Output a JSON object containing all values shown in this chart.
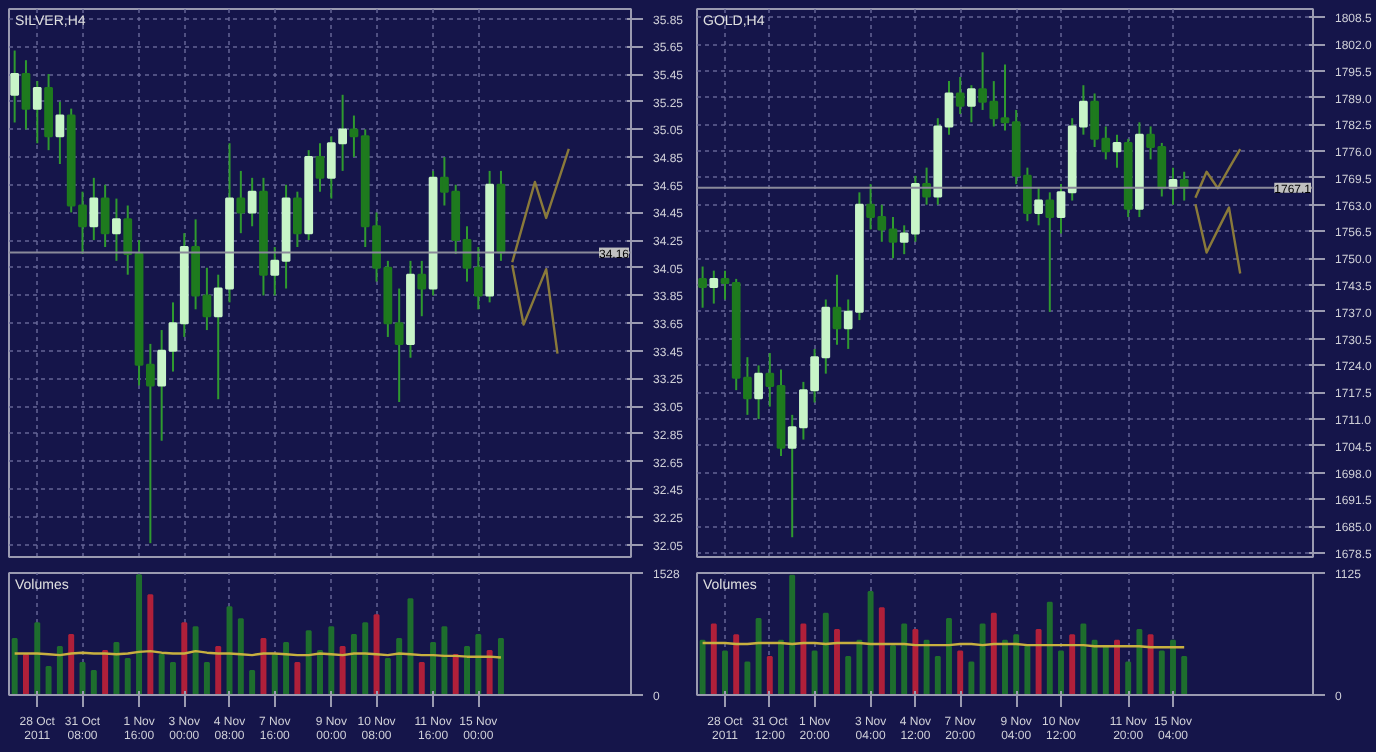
{
  "chart_data": [
    {
      "type": "candlestick",
      "title": "SILVER,H4",
      "tick_labels": "y",
      "grid": true,
      "categories": [
        null,
        null,
        null,
        null,
        null,
        null,
        null,
        null,
        null,
        null,
        null,
        null,
        null,
        null,
        null,
        null,
        null,
        null,
        null,
        null,
        null,
        null,
        null,
        null,
        null,
        null,
        null,
        null,
        null,
        null,
        null,
        null,
        null,
        null,
        null,
        null,
        null,
        null,
        null,
        null,
        null,
        null,
        null,
        null,
        null,
        null,
        null,
        null,
        null,
        null,
        null,
        null,
        null,
        null,
        null
      ],
      "ylim": [
        31.96,
        35.92
      ],
      "yticks": [
        32.05,
        32.25,
        32.45,
        32.65,
        32.85,
        33.05,
        33.25,
        33.45,
        33.65,
        33.85,
        34.05,
        34.25,
        34.45,
        34.65,
        34.85,
        35.05,
        35.25,
        35.45,
        35.65,
        35.85
      ],
      "ohlc": [
        [
          35.3,
          35.62,
          35.1,
          35.45
        ],
        [
          35.45,
          35.55,
          35.05,
          35.2
        ],
        [
          35.2,
          35.4,
          34.95,
          35.35
        ],
        [
          35.35,
          35.45,
          34.9,
          35.0
        ],
        [
          35.0,
          35.25,
          34.8,
          35.15
        ],
        [
          35.15,
          35.2,
          34.45,
          34.5
        ],
        [
          34.5,
          34.6,
          34.15,
          34.35
        ],
        [
          34.35,
          34.7,
          34.25,
          34.55
        ],
        [
          34.55,
          34.65,
          34.2,
          34.3
        ],
        [
          34.3,
          34.55,
          34.1,
          34.4
        ],
        [
          34.4,
          34.5,
          34.0,
          34.15
        ],
        [
          34.15,
          34.25,
          33.2,
          33.35
        ],
        [
          33.35,
          33.5,
          32.06,
          33.2
        ],
        [
          33.2,
          33.6,
          32.8,
          33.45
        ],
        [
          33.45,
          33.8,
          33.3,
          33.65
        ],
        [
          33.65,
          34.3,
          33.55,
          34.2
        ],
        [
          34.2,
          34.4,
          33.75,
          33.85
        ],
        [
          33.85,
          34.05,
          33.6,
          33.7
        ],
        [
          33.7,
          34.0,
          33.1,
          33.9
        ],
        [
          33.9,
          34.95,
          33.8,
          34.55
        ],
        [
          34.55,
          34.75,
          34.3,
          34.45
        ],
        [
          34.45,
          34.7,
          34.35,
          34.6
        ],
        [
          34.6,
          34.7,
          33.85,
          34.0
        ],
        [
          34.0,
          34.2,
          33.85,
          34.1
        ],
        [
          34.1,
          34.65,
          33.9,
          34.55
        ],
        [
          34.55,
          34.6,
          34.2,
          34.3
        ],
        [
          34.3,
          34.9,
          34.25,
          34.85
        ],
        [
          34.85,
          34.95,
          34.6,
          34.7
        ],
        [
          34.7,
          35.0,
          34.55,
          34.95
        ],
        [
          34.95,
          35.3,
          34.75,
          35.05
        ],
        [
          35.05,
          35.15,
          34.85,
          35.0
        ],
        [
          35.0,
          35.05,
          34.2,
          34.35
        ],
        [
          34.35,
          34.45,
          33.95,
          34.05
        ],
        [
          34.05,
          34.1,
          33.55,
          33.65
        ],
        [
          33.65,
          33.9,
          33.08,
          33.5
        ],
        [
          33.5,
          34.1,
          33.4,
          34.0
        ],
        [
          34.0,
          34.1,
          33.7,
          33.9
        ],
        [
          33.9,
          34.75,
          33.85,
          34.7
        ],
        [
          34.7,
          34.85,
          34.5,
          34.6
        ],
        [
          34.6,
          34.65,
          34.15,
          34.25
        ],
        [
          34.25,
          34.35,
          33.95,
          34.05
        ],
        [
          34.05,
          34.2,
          33.75,
          33.85
        ],
        [
          33.85,
          34.75,
          33.8,
          34.65
        ],
        [
          34.65,
          34.75,
          34.1,
          34.16
        ],
        null,
        null,
        null,
        null,
        null,
        null,
        null,
        null,
        null,
        null,
        null
      ],
      "colors": [
        "#c8f5c8",
        "#1e7a1e",
        "#c8f5c8",
        "#1e7a1e",
        "#c8f5c8",
        "#1e7a1e",
        "#1e7a1e",
        "#c8f5c8",
        "#1e7a1e",
        "#c8f5c8",
        "#1e7a1e",
        "#1e7a1e",
        "#1e7a1e",
        "#c8f5c8",
        "#c8f5c8",
        "#c8f5c8",
        "#1e7a1e",
        "#1e7a1e",
        "#c8f5c8",
        "#c8f5c8",
        "#1e7a1e",
        "#c8f5c8",
        "#1e7a1e",
        "#c8f5c8",
        "#c8f5c8",
        "#1e7a1e",
        "#c8f5c8",
        "#1e7a1e",
        "#c8f5c8",
        "#c8f5c8",
        "#1e7a1e",
        "#1e7a1e",
        "#1e7a1e",
        "#1e7a1e",
        "#1e7a1e",
        "#c8f5c8",
        "#1e7a1e",
        "#c8f5c8",
        "#1e7a1e",
        "#1e7a1e",
        "#1e7a1e",
        "#1e7a1e",
        "#c8f5c8",
        "#1e7a1e",
        null,
        null,
        null,
        null,
        null,
        null,
        null,
        null,
        null,
        null,
        null
      ],
      "series": [
        {
          "type": "line",
          "color": "#8a7a3a",
          "values": [
            null,
            null,
            null,
            null,
            null,
            null,
            null,
            null,
            null,
            null,
            null,
            null,
            null,
            null,
            null,
            null,
            null,
            null,
            null,
            null,
            null,
            null,
            null,
            null,
            null,
            null,
            null,
            null,
            null,
            null,
            null,
            null,
            null,
            null,
            null,
            null,
            null,
            null,
            null,
            null,
            null,
            null,
            null,
            null,
            34.09,
            34.38,
            34.67,
            34.41,
            34.66,
            34.91,
            null,
            null,
            null,
            null,
            null
          ]
        },
        {
          "type": "line",
          "color": "#8a7a3a",
          "values": [
            null,
            null,
            null,
            null,
            null,
            null,
            null,
            null,
            null,
            null,
            null,
            null,
            null,
            null,
            null,
            null,
            null,
            null,
            null,
            null,
            null,
            null,
            null,
            null,
            null,
            null,
            null,
            null,
            null,
            null,
            null,
            null,
            null,
            null,
            null,
            null,
            null,
            null,
            null,
            null,
            null,
            null,
            null,
            null,
            34.07,
            33.64,
            33.84,
            34.04,
            33.43,
            null,
            null,
            null,
            null,
            null,
            null
          ]
        }
      ],
      "ref_lines": [
        {
          "axis": "y",
          "value": 34.16,
          "label": "34.16",
          "color": "#8a8a9a"
        }
      ]
    },
    {
      "type": "candlestick",
      "title": "GOLD,H4",
      "tick_labels": "y",
      "grid": true,
      "categories": [
        null,
        null,
        null,
        null,
        null,
        null,
        null,
        null,
        null,
        null,
        null,
        null,
        null,
        null,
        null,
        null,
        null,
        null,
        null,
        null,
        null,
        null,
        null,
        null,
        null,
        null,
        null,
        null,
        null,
        null,
        null,
        null,
        null,
        null,
        null,
        null,
        null,
        null,
        null,
        null,
        null,
        null,
        null,
        null,
        null,
        null,
        null,
        null,
        null,
        null,
        null,
        null,
        null,
        null,
        null
      ],
      "ylim": [
        1677.5,
        1810.5
      ],
      "yticks": [
        {
          "value": 1678.5,
          "label": "1678.5"
        },
        {
          "value": 1685,
          "label": "1685.0"
        },
        {
          "value": 1691.5,
          "label": "1691.5"
        },
        {
          "value": 1698,
          "label": "1698.0"
        },
        {
          "value": 1704.5,
          "label": "1704.5"
        },
        {
          "value": 1711,
          "label": "1711.0"
        },
        {
          "value": 1717.5,
          "label": "1717.5"
        },
        {
          "value": 1724,
          "label": "1724.0"
        },
        {
          "value": 1730.5,
          "label": "1730.5"
        },
        {
          "value": 1737,
          "label": "1737.0"
        },
        {
          "value": 1743.5,
          "label": "1743.5"
        },
        {
          "value": 1750,
          "label": "1750.0"
        },
        {
          "value": 1756.5,
          "label": "1756.5"
        },
        {
          "value": 1763,
          "label": "1763.0"
        },
        {
          "value": 1769.5,
          "label": "1769.5"
        },
        {
          "value": 1776,
          "label": "1776.0"
        },
        {
          "value": 1782.5,
          "label": "1782.5"
        },
        {
          "value": 1789,
          "label": "1789.0"
        },
        {
          "value": 1795.5,
          "label": "1795.5"
        },
        {
          "value": 1802,
          "label": "1802.0"
        },
        {
          "value": 1808.5,
          "label": "1808.5"
        }
      ],
      "ohlc": [
        [
          1745,
          1748,
          1738,
          1743
        ],
        [
          1743,
          1747,
          1739,
          1745
        ],
        [
          1745,
          1747,
          1740,
          1744
        ],
        [
          1744,
          1745,
          1718,
          1721
        ],
        [
          1721,
          1726,
          1712,
          1716
        ],
        [
          1716,
          1724,
          1711,
          1722
        ],
        [
          1722,
          1727,
          1714,
          1719
        ],
        [
          1719,
          1723,
          1702,
          1704
        ],
        [
          1704,
          1712,
          1682.3,
          1709
        ],
        [
          1709,
          1720,
          1706,
          1718
        ],
        [
          1718,
          1728,
          1715,
          1726
        ],
        [
          1726,
          1740,
          1722,
          1738
        ],
        [
          1738,
          1746,
          1729,
          1733
        ],
        [
          1733,
          1740,
          1728,
          1737
        ],
        [
          1737,
          1766,
          1735,
          1763
        ],
        [
          1763,
          1768,
          1757,
          1760
        ],
        [
          1760,
          1763,
          1754,
          1757
        ],
        [
          1757,
          1760,
          1750,
          1754
        ],
        [
          1754,
          1758,
          1751,
          1756
        ],
        [
          1756,
          1770,
          1754,
          1768
        ],
        [
          1768,
          1772,
          1763,
          1765
        ],
        [
          1765,
          1784,
          1763,
          1782
        ],
        [
          1782,
          1793,
          1780,
          1790
        ],
        [
          1790,
          1794,
          1785,
          1787
        ],
        [
          1787,
          1792,
          1783,
          1791
        ],
        [
          1791,
          1800,
          1786,
          1788
        ],
        [
          1788,
          1793,
          1782,
          1784
        ],
        [
          1784,
          1797,
          1781,
          1783
        ],
        [
          1783,
          1786,
          1768,
          1770
        ],
        [
          1770,
          1772,
          1759,
          1761
        ],
        [
          1761,
          1767,
          1758,
          1764
        ],
        [
          1764,
          1766,
          1737,
          1760
        ],
        [
          1760,
          1768,
          1756,
          1766
        ],
        [
          1766,
          1784,
          1764,
          1782
        ],
        [
          1782,
          1792,
          1780,
          1788
        ],
        [
          1788,
          1790,
          1777,
          1779
        ],
        [
          1779,
          1782,
          1774,
          1776
        ],
        [
          1776,
          1780,
          1772,
          1778
        ],
        [
          1778,
          1779,
          1760,
          1762
        ],
        [
          1762,
          1783,
          1760,
          1780
        ],
        [
          1780,
          1782,
          1774,
          1777
        ],
        [
          1777,
          1778,
          1765,
          1767
        ],
        [
          1767,
          1772,
          1763,
          1769
        ],
        [
          1769,
          1771,
          1764,
          1767.1
        ],
        null,
        null,
        null,
        null,
        null,
        null,
        null,
        null,
        null,
        null,
        null
      ],
      "colors": [
        "#1e7a1e",
        "#c8f5c8",
        "#1e7a1e",
        "#1e7a1e",
        "#1e7a1e",
        "#c8f5c8",
        "#1e7a1e",
        "#1e7a1e",
        "#c8f5c8",
        "#c8f5c8",
        "#c8f5c8",
        "#c8f5c8",
        "#1e7a1e",
        "#c8f5c8",
        "#c8f5c8",
        "#1e7a1e",
        "#1e7a1e",
        "#1e7a1e",
        "#c8f5c8",
        "#c8f5c8",
        "#1e7a1e",
        "#c8f5c8",
        "#c8f5c8",
        "#1e7a1e",
        "#c8f5c8",
        "#1e7a1e",
        "#1e7a1e",
        "#1e7a1e",
        "#1e7a1e",
        "#1e7a1e",
        "#c8f5c8",
        "#1e7a1e",
        "#c8f5c8",
        "#c8f5c8",
        "#c8f5c8",
        "#1e7a1e",
        "#1e7a1e",
        "#c8f5c8",
        "#1e7a1e",
        "#c8f5c8",
        "#1e7a1e",
        "#1e7a1e",
        "#c8f5c8",
        "#1e7a1e",
        null,
        null,
        null,
        null,
        null,
        null,
        null,
        null,
        null,
        null,
        null
      ],
      "series": [
        {
          "type": "line",
          "color": "#8a7a3a",
          "values": [
            null,
            null,
            null,
            null,
            null,
            null,
            null,
            null,
            null,
            null,
            null,
            null,
            null,
            null,
            null,
            null,
            null,
            null,
            null,
            null,
            null,
            null,
            null,
            null,
            null,
            null,
            null,
            null,
            null,
            null,
            null,
            null,
            null,
            null,
            null,
            null,
            null,
            null,
            null,
            null,
            null,
            null,
            null,
            null,
            1764.7,
            1771.0,
            1767.0,
            1771.8,
            1776.5,
            null,
            null,
            null,
            null,
            null,
            null
          ]
        },
        {
          "type": "line",
          "color": "#8a7a3a",
          "values": [
            null,
            null,
            null,
            null,
            null,
            null,
            null,
            null,
            null,
            null,
            null,
            null,
            null,
            null,
            null,
            null,
            null,
            null,
            null,
            null,
            null,
            null,
            null,
            null,
            null,
            null,
            null,
            null,
            null,
            null,
            null,
            null,
            null,
            null,
            null,
            null,
            null,
            null,
            null,
            null,
            null,
            null,
            null,
            null,
            1763.1,
            1751.4,
            1756.9,
            1762.3,
            1746.3,
            null,
            null,
            null,
            null,
            null,
            null
          ]
        }
      ],
      "ref_lines": [
        {
          "axis": "y",
          "value": 1767.1,
          "label": "1767.1",
          "color": "#8a8a9a"
        }
      ]
    },
    {
      "type": "bar",
      "title": "Volumes",
      "grid": true,
      "categories": [
        null,
        null,
        "28 Oct 2011",
        null,
        null,
        null,
        "31 Oct 08:00",
        null,
        null,
        null,
        null,
        "1 Nov 16:00",
        null,
        null,
        null,
        "3 Nov 00:00",
        null,
        null,
        null,
        "4 Nov 08:00",
        null,
        null,
        null,
        "7 Nov 16:00",
        null,
        null,
        null,
        null,
        "9 Nov 00:00",
        null,
        null,
        null,
        "10 Nov 08:00",
        null,
        null,
        null,
        null,
        "11 Nov 16:00",
        null,
        null,
        null,
        "15 Nov 00:00",
        null,
        null,
        null,
        null,
        null,
        null,
        null,
        null,
        null,
        null,
        null,
        null,
        null
      ],
      "ylim": [
        0,
        1528
      ],
      "yticks": [
        0,
        1528
      ],
      "values": [
        700,
        500,
        900,
        350,
        600,
        750,
        400,
        300,
        550,
        650,
        450,
        1500,
        1250,
        500,
        400,
        900,
        850,
        400,
        600,
        1100,
        950,
        300,
        700,
        500,
        650,
        400,
        800,
        550,
        850,
        600,
        750,
        900,
        1000,
        450,
        700,
        1200,
        400,
        650,
        850,
        500,
        600,
        750,
        550,
        700,
        null,
        null,
        null,
        null,
        null,
        null,
        null,
        null,
        null,
        null,
        null
      ],
      "colors": [
        "#1e6e2e",
        "#b0203a",
        "#1e6e2e",
        "#1e6e2e",
        "#1e6e2e",
        "#b0203a",
        "#1e6e2e",
        "#1e6e2e",
        "#b0203a",
        "#1e6e2e",
        "#1e6e2e",
        "#1e6e2e",
        "#b0203a",
        "#1e6e2e",
        "#1e6e2e",
        "#b0203a",
        "#1e6e2e",
        "#1e6e2e",
        "#b0203a",
        "#1e6e2e",
        "#1e6e2e",
        "#1e6e2e",
        "#b0203a",
        "#1e6e2e",
        "#1e6e2e",
        "#b0203a",
        "#1e6e2e",
        "#1e6e2e",
        "#1e6e2e",
        "#b0203a",
        "#1e6e2e",
        "#1e6e2e",
        "#b0203a",
        "#1e6e2e",
        "#1e6e2e",
        "#1e6e2e",
        "#b0203a",
        "#1e6e2e",
        "#1e6e2e",
        "#b0203a",
        "#1e6e2e",
        "#1e6e2e",
        "#b0203a",
        "#1e6e2e",
        null,
        null,
        null,
        null,
        null,
        null,
        null,
        null,
        null,
        null,
        null
      ],
      "series": [
        {
          "type": "line",
          "color": "#c8b040",
          "values": [
            520,
            520,
            520,
            510,
            500,
            520,
            530,
            520,
            520,
            510,
            520,
            540,
            550,
            530,
            520,
            520,
            550,
            530,
            520,
            520,
            510,
            500,
            520,
            520,
            510,
            500,
            500,
            520,
            510,
            500,
            520,
            520,
            510,
            500,
            520,
            510,
            500,
            500,
            490,
            490,
            480,
            480,
            480,
            470,
            null,
            null,
            null,
            null,
            null,
            null,
            null,
            null,
            null,
            null,
            null
          ]
        }
      ]
    },
    {
      "type": "bar",
      "title": "Volumes",
      "grid": true,
      "categories": [
        null,
        null,
        "28 Oct 2011",
        null,
        null,
        null,
        "31 Oct 12:00",
        null,
        null,
        null,
        "1 Nov 20:00",
        null,
        null,
        null,
        null,
        "3 Nov 04:00",
        null,
        null,
        null,
        "4 Nov 12:00",
        null,
        null,
        null,
        "7 Nov 20:00",
        null,
        null,
        null,
        null,
        "9 Nov 04:00",
        null,
        null,
        null,
        "10 Nov 12:00",
        null,
        null,
        null,
        null,
        null,
        "11 Nov 20:00",
        null,
        null,
        null,
        "15 Nov 04:00",
        null,
        null,
        null,
        null,
        null,
        null,
        null,
        null,
        null,
        null,
        null,
        null
      ],
      "ylim": [
        0,
        1125
      ],
      "yticks": [
        0,
        1125
      ],
      "values": [
        500,
        650,
        400,
        550,
        300,
        700,
        350,
        500,
        1100,
        650,
        400,
        750,
        600,
        350,
        500,
        950,
        800,
        450,
        650,
        600,
        500,
        350,
        700,
        400,
        300,
        650,
        750,
        500,
        550,
        450,
        600,
        850,
        400,
        550,
        650,
        500,
        450,
        500,
        300,
        600,
        550,
        400,
        500,
        350,
        null,
        null,
        null,
        null,
        null,
        null,
        null,
        null,
        null,
        null,
        null
      ],
      "colors": [
        "#1e6e2e",
        "#b0203a",
        "#1e6e2e",
        "#b0203a",
        "#1e6e2e",
        "#1e6e2e",
        "#b0203a",
        "#1e6e2e",
        "#1e6e2e",
        "#b0203a",
        "#1e6e2e",
        "#1e6e2e",
        "#b0203a",
        "#1e6e2e",
        "#1e6e2e",
        "#1e6e2e",
        "#b0203a",
        "#1e6e2e",
        "#1e6e2e",
        "#b0203a",
        "#1e6e2e",
        "#1e6e2e",
        "#1e6e2e",
        "#b0203a",
        "#1e6e2e",
        "#1e6e2e",
        "#b0203a",
        "#1e6e2e",
        "#1e6e2e",
        "#1e6e2e",
        "#b0203a",
        "#1e6e2e",
        "#1e6e2e",
        "#b0203a",
        "#1e6e2e",
        "#1e6e2e",
        "#1e6e2e",
        "#b0203a",
        "#1e6e2e",
        "#1e6e2e",
        "#b0203a",
        "#1e6e2e",
        "#1e6e2e",
        "#1e6e2e",
        null,
        null,
        null,
        null,
        null,
        null,
        null,
        null,
        null,
        null,
        null
      ],
      "series": [
        {
          "type": "line",
          "color": "#c8b040",
          "values": [
            480,
            480,
            480,
            470,
            470,
            480,
            480,
            480,
            470,
            480,
            480,
            470,
            480,
            480,
            480,
            470,
            470,
            470,
            470,
            460,
            460,
            460,
            460,
            470,
            470,
            460,
            470,
            470,
            470,
            460,
            460,
            460,
            460,
            460,
            460,
            450,
            450,
            450,
            450,
            450,
            440,
            440,
            440,
            440,
            null,
            null,
            null,
            null,
            null,
            null,
            null,
            null,
            null,
            null,
            null
          ]
        }
      ]
    }
  ]
}
